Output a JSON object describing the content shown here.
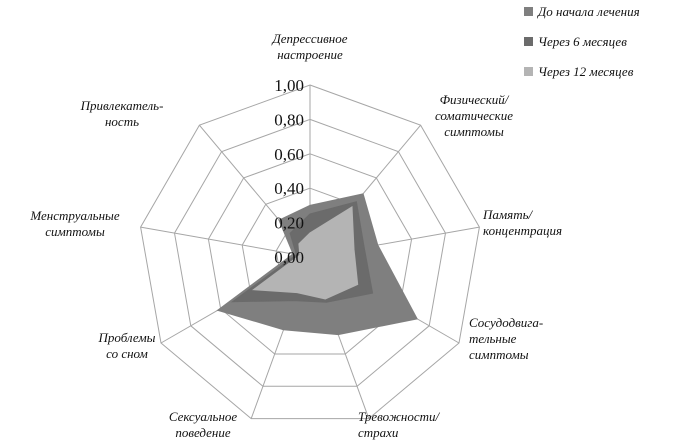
{
  "chart_data": {
    "type": "radar",
    "title": "",
    "categories": [
      [
        "Депрессивное",
        "настроение"
      ],
      [
        "Физический/",
        "соматические",
        "симптомы"
      ],
      [
        "Память/",
        "концентрация"
      ],
      [
        "Сосудодвига-",
        "тельные",
        "симптомы"
      ],
      [
        "Тревожности/",
        "страхи"
      ],
      [
        "Сексуальное",
        "поведение"
      ],
      [
        "Проблемы",
        "со сном"
      ],
      [
        "Менструальные",
        "симптомы"
      ],
      [
        "Привлекатель-",
        "ность"
      ]
    ],
    "rlim": [
      0,
      1
    ],
    "ticks": [
      "0,00",
      "0,20",
      "0,40",
      "0,60",
      "0,80",
      "1,00"
    ],
    "grid": true,
    "legend_position": "top-right",
    "series": [
      {
        "name": "До начала лечения",
        "color": "#7f7f7f",
        "values": [
          0.3,
          0.48,
          0.4,
          0.72,
          0.48,
          0.45,
          0.62,
          0.1,
          0.28
        ]
      },
      {
        "name": "Через 6 месяцев",
        "color": "#6b6b6b",
        "values": [
          0.25,
          0.42,
          0.32,
          0.42,
          0.28,
          0.27,
          0.52,
          0.08,
          0.18
        ]
      },
      {
        "name": "Через 12 месяцев",
        "color": "#b4b4b4",
        "values": [
          0.14,
          0.38,
          0.26,
          0.32,
          0.26,
          0.22,
          0.38,
          0.06,
          0.1
        ]
      }
    ]
  }
}
